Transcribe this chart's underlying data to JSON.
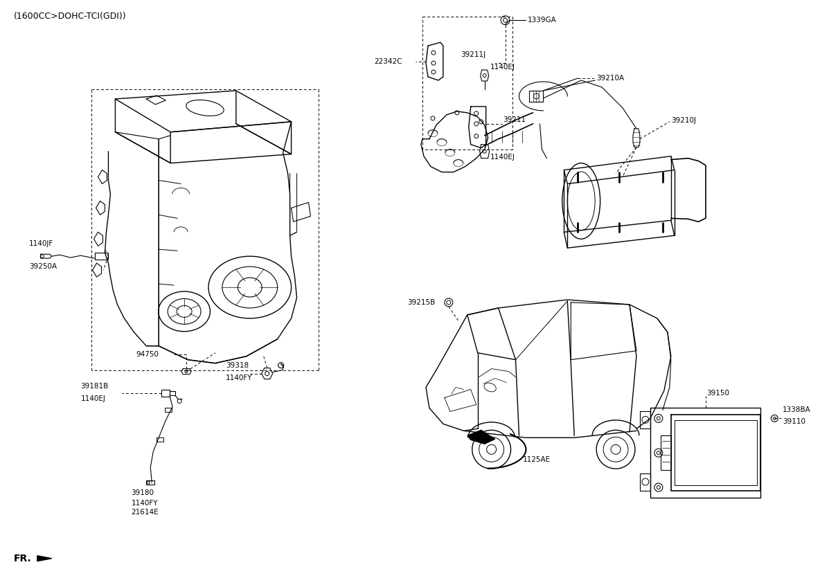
{
  "bg": "#ffffff",
  "lc": "#000000",
  "fig_w": 11.97,
  "fig_h": 8.48,
  "dpi": 100,
  "labels": {
    "title": "(1600CC>DOHC-TCI(GDI))",
    "fr": "FR.",
    "p1339GA": "1339GA",
    "p22342C": "22342C",
    "p39211J": "39211J",
    "p1140EJ_a": "1140EJ",
    "p39211": "39211",
    "p1140EJ_b": "1140EJ",
    "p39210A": "39210A",
    "p39210J": "39210J",
    "p1140JF": "1140JF",
    "p39250A": "39250A",
    "p94750": "94750",
    "p39181B": "39181B",
    "p1140EJ_c": "1140EJ",
    "p39318": "39318",
    "p1140FY_a": "1140FY",
    "p39180": "39180",
    "p1140FY_b": "1140FY",
    "p21614E": "21614E",
    "p39215B": "39215B",
    "p1125AE": "1125AE",
    "p39150": "39150",
    "p39110": "39110",
    "p1338BA": "1338BA"
  }
}
